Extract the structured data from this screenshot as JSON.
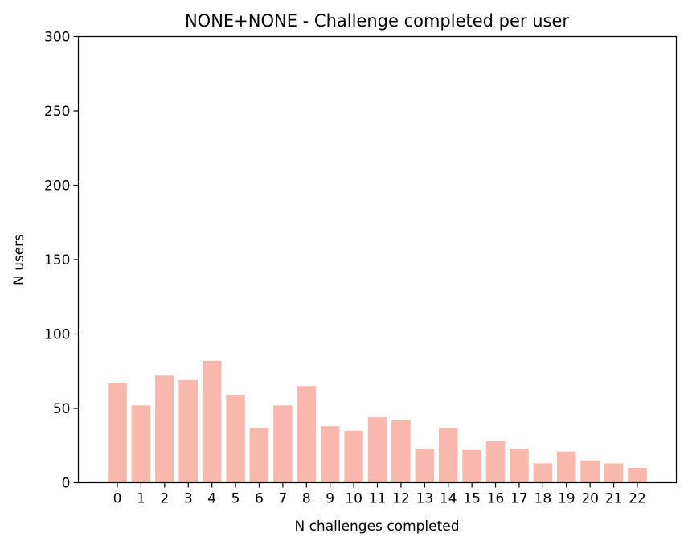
{
  "chart_data": {
    "type": "bar",
    "title": "NONE+NONE - Challenge completed per user",
    "xlabel": "N challenges completed",
    "ylabel": "N users",
    "categories": [
      "0",
      "1",
      "2",
      "3",
      "4",
      "5",
      "6",
      "7",
      "8",
      "9",
      "10",
      "11",
      "12",
      "13",
      "14",
      "15",
      "16",
      "17",
      "18",
      "19",
      "20",
      "21",
      "22"
    ],
    "values": [
      67,
      52,
      72,
      69,
      82,
      59,
      37,
      52,
      65,
      38,
      35,
      44,
      42,
      23,
      37,
      22,
      28,
      23,
      13,
      21,
      15,
      13,
      10
    ],
    "ylim": [
      0,
      300
    ],
    "yticks": [
      "0",
      "50",
      "100",
      "150",
      "200",
      "250",
      "300"
    ],
    "grid": false,
    "bar_color": "#f8b8ad"
  }
}
